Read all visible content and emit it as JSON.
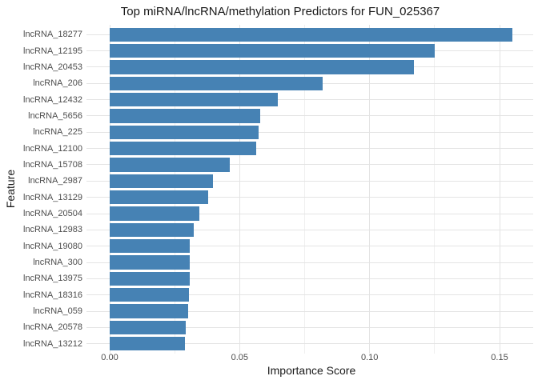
{
  "chart_data": {
    "type": "bar",
    "orientation": "horizontal",
    "title": "Top miRNA/lncRNA/methylation Predictors for FUN_025367",
    "xlabel": "Importance Score",
    "ylabel": "Feature",
    "categories": [
      "lncRNA_18277",
      "lncRNA_12195",
      "lncRNA_20453",
      "lncRNA_206",
      "lncRNA_12432",
      "lncRNA_5656",
      "lncRNA_225",
      "lncRNA_12100",
      "lncRNA_15708",
      "lncRNA_2987",
      "lncRNA_13129",
      "lncRNA_20504",
      "lncRNA_12983",
      "lncRNA_19080",
      "lncRNA_300",
      "lncRNA_13975",
      "lncRNA_18316",
      "lncRNA_059",
      "lncRNA_20578",
      "lncRNA_13212"
    ],
    "values": [
      0.155,
      0.125,
      0.117,
      0.082,
      0.0646,
      0.0579,
      0.0572,
      0.0563,
      0.0462,
      0.0397,
      0.0379,
      0.0345,
      0.0322,
      0.0309,
      0.0308,
      0.0307,
      0.0304,
      0.0303,
      0.0294,
      0.0288
    ],
    "x_ticks": [
      0,
      0.05,
      0.1,
      0.15
    ],
    "x_tick_labels": [
      "0.00",
      "0.05",
      "0.10",
      "0.15"
    ],
    "x_minor_ticks": [
      0.025,
      0.075,
      0.125
    ],
    "xlim": [
      -0.009,
      0.163
    ],
    "ylim_categories": 20,
    "bar_color": "#4682B4",
    "colors": {
      "background": "#ffffff",
      "major_grid": "#e3e3e3",
      "minor_grid": "#efefef",
      "tick_label": "#4d4d4d",
      "title_text": "#1a1a1a"
    },
    "grid": true,
    "legend": false
  }
}
